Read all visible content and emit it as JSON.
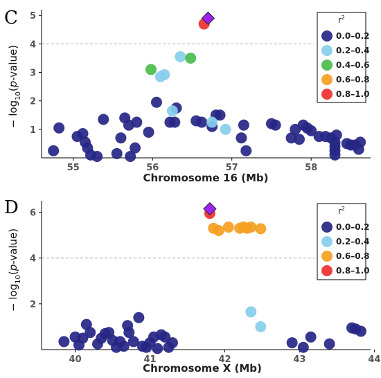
{
  "panels": [
    {
      "letter": "C",
      "xlabel": "Chromosome 16 (Mb)",
      "ylabel": "− log10(p-value)",
      "legend_title": "r2",
      "legend_items": [
        "0.0–0.2",
        "0.2–0.4",
        "0.4–0.6",
        "0.6–0.8",
        "0.8–1.0"
      ]
    },
    {
      "letter": "D",
      "xlabel": "Chromosome X (Mb)",
      "ylabel": "− log10(p-value)",
      "legend_title": "r2",
      "legend_items": [
        "0.0–0.2",
        "0.2–0.4",
        "0.6–0.8",
        "0.8–1.0"
      ]
    }
  ],
  "chart_data": [
    {
      "type": "scatter",
      "panel_letter": "C",
      "xlabel": "Chromosome 16 (Mb)",
      "ylabel": "− log10(p-value)",
      "xlim": [
        54.6,
        58.75
      ],
      "ylim": [
        0,
        5.2
      ],
      "xticks": [
        55,
        56,
        57,
        58
      ],
      "yticks": [
        1,
        2,
        3,
        4,
        5
      ],
      "threshold": 4,
      "colors": {
        "0.0–0.2": "#262686",
        "0.2–0.4": "#87CEEB",
        "0.4–0.6": "#4CBB4C",
        "0.6–0.8": "#F5A020",
        "0.8–1.0": "#EE3030",
        "lead": "#A020F0"
      },
      "lead": {
        "x": 56.7,
        "y": 4.9
      },
      "series": [
        {
          "name": "0.0–0.2",
          "points": [
            [
              54.75,
              0.25
            ],
            [
              54.82,
              1.05
            ],
            [
              55.05,
              0.75
            ],
            [
              55.12,
              0.85
            ],
            [
              55.15,
              0.55
            ],
            [
              55.18,
              0.35
            ],
            [
              55.22,
              0.1
            ],
            [
              55.3,
              0.05
            ],
            [
              55.38,
              1.35
            ],
            [
              55.55,
              0.15
            ],
            [
              55.6,
              0.7
            ],
            [
              55.65,
              1.4
            ],
            [
              55.7,
              1.15
            ],
            [
              55.72,
              0.05
            ],
            [
              55.78,
              0.35
            ],
            [
              55.8,
              1.25
            ],
            [
              55.95,
              0.9
            ],
            [
              56.05,
              1.95
            ],
            [
              56.22,
              1.25
            ],
            [
              56.28,
              1.25
            ],
            [
              56.3,
              1.75
            ],
            [
              56.55,
              1.3
            ],
            [
              56.62,
              1.25
            ],
            [
              56.75,
              1.1
            ],
            [
              56.8,
              1.5
            ],
            [
              56.85,
              1.5
            ],
            [
              57.12,
              0.7
            ],
            [
              57.15,
              1.15
            ],
            [
              57.18,
              0.25
            ],
            [
              57.5,
              1.2
            ],
            [
              57.55,
              1.15
            ],
            [
              57.75,
              0.7
            ],
            [
              57.8,
              1.0
            ],
            [
              57.85,
              0.65
            ],
            [
              57.9,
              1.15
            ],
            [
              57.95,
              1.05
            ],
            [
              58.0,
              0.95
            ],
            [
              58.1,
              0.75
            ],
            [
              58.18,
              0.75
            ],
            [
              58.25,
              0.7
            ],
            [
              58.3,
              0.1
            ],
            [
              58.3,
              0.25
            ],
            [
              58.3,
              0.4
            ],
            [
              58.3,
              0.55
            ],
            [
              58.32,
              0.8
            ],
            [
              58.45,
              0.5
            ],
            [
              58.5,
              0.45
            ],
            [
              58.55,
              0.45
            ],
            [
              58.6,
              0.3
            ],
            [
              58.62,
              0.55
            ]
          ]
        },
        {
          "name": "0.2–0.4",
          "points": [
            [
              56.1,
              2.85
            ],
            [
              56.15,
              2.92
            ],
            [
              56.25,
              1.65
            ],
            [
              56.35,
              3.55
            ],
            [
              56.75,
              1.25
            ],
            [
              56.92,
              1.0
            ]
          ]
        },
        {
          "name": "0.4–0.6",
          "points": [
            [
              55.98,
              3.1
            ],
            [
              56.48,
              3.5
            ]
          ]
        },
        {
          "name": "0.8–1.0",
          "points": [
            [
              56.65,
              4.7
            ]
          ]
        }
      ]
    },
    {
      "type": "scatter",
      "panel_letter": "D",
      "xlabel": "Chromosome X (Mb)",
      "ylabel": "− log10(p-value)",
      "xlim": [
        39.55,
        43.95
      ],
      "ylim": [
        0,
        6.5
      ],
      "xticks": [
        40,
        41,
        42,
        43,
        44
      ],
      "yticks": [
        2,
        4,
        6
      ],
      "threshold": 4,
      "colors": {
        "0.0–0.2": "#262686",
        "0.2–0.4": "#87CEEB",
        "0.6–0.8": "#F5A020",
        "0.8–1.0": "#EE3030",
        "lead": "#A020F0"
      },
      "lead": {
        "x": 41.8,
        "y": 6.15
      },
      "series": [
        {
          "name": "0.0–0.2",
          "points": [
            [
              39.85,
              0.35
            ],
            [
              40.0,
              0.55
            ],
            [
              40.05,
              0.2
            ],
            [
              40.1,
              0.5
            ],
            [
              40.15,
              1.1
            ],
            [
              40.2,
              0.75
            ],
            [
              40.3,
              0.25
            ],
            [
              40.35,
              0.5
            ],
            [
              40.4,
              0.7
            ],
            [
              40.45,
              0.75
            ],
            [
              40.5,
              0.4
            ],
            [
              40.55,
              0.1
            ],
            [
              40.6,
              0.35
            ],
            [
              40.65,
              0.15
            ],
            [
              40.7,
              1.05
            ],
            [
              40.72,
              0.75
            ],
            [
              40.78,
              0.35
            ],
            [
              40.85,
              1.4
            ],
            [
              40.9,
              0.15
            ],
            [
              40.95,
              0.1
            ],
            [
              41.0,
              0.3
            ],
            [
              41.05,
              0.55
            ],
            [
              41.1,
              0.05
            ],
            [
              41.15,
              0.65
            ],
            [
              41.2,
              0.55
            ],
            [
              41.25,
              0.1
            ],
            [
              41.3,
              0.3
            ],
            [
              42.9,
              0.3
            ],
            [
              43.05,
              0.1
            ],
            [
              43.15,
              0.55
            ],
            [
              43.4,
              0.25
            ],
            [
              43.7,
              0.95
            ],
            [
              43.75,
              0.9
            ],
            [
              43.82,
              0.8
            ]
          ]
        },
        {
          "name": "0.2–0.4",
          "points": [
            [
              42.35,
              1.65
            ],
            [
              42.48,
              1.0
            ]
          ]
        },
        {
          "name": "0.6–0.8",
          "points": [
            [
              41.85,
              5.3
            ],
            [
              41.92,
              5.2
            ],
            [
              42.05,
              5.35
            ],
            [
              42.2,
              5.3
            ],
            [
              42.25,
              5.35
            ],
            [
              42.3,
              5.3
            ],
            [
              42.35,
              5.35
            ],
            [
              42.48,
              5.28
            ]
          ]
        },
        {
          "name": "0.8–1.0",
          "points": [
            [
              41.8,
              5.95
            ]
          ]
        }
      ]
    }
  ]
}
